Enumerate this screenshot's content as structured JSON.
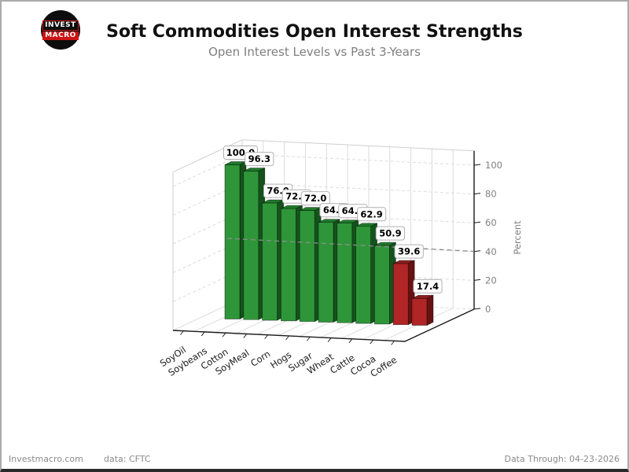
{
  "header": {
    "logo": {
      "line1": "INVEST",
      "line2": "MACRO"
    },
    "title": "Soft Commodities Open Interest Strengths",
    "subtitle": "Open Interest Levels vs Past 3-Years"
  },
  "chart_data": {
    "type": "bar",
    "projection": "3d",
    "title": "Soft Commodities Open Interest Strengths",
    "subtitle": "Open Interest Levels vs Past 3-Years",
    "categories": [
      "SoyOil",
      "Soybeans",
      "Cotton",
      "SoyMeal",
      "Corn",
      "Hogs",
      "Sugar",
      "Wheat",
      "Cattle",
      "Cocoa",
      "Coffee"
    ],
    "values": [
      100.0,
      96.3,
      76.0,
      72.8,
      72.0,
      64.7,
      64.6,
      62.9,
      50.9,
      39.6,
      17.4
    ],
    "value_labels": [
      "100.0",
      "96.3",
      "76.0",
      "72.8",
      "72.0",
      "64.7",
      "64.6",
      "62.9",
      "50.9",
      "39.6",
      "17.4"
    ],
    "bar_colors": [
      "green",
      "green",
      "green",
      "green",
      "green",
      "green",
      "green",
      "green",
      "green",
      "red",
      "red"
    ],
    "zlabel": "Percent",
    "zticks": [
      "0",
      "20",
      "40",
      "60",
      "80",
      "100"
    ],
    "zlim": [
      0,
      110
    ],
    "reference_line": 45,
    "grid": true,
    "legend": false,
    "palette": {
      "green_front": "#2E9638",
      "green_top": "#1F7A2A",
      "green_side": "#14531C",
      "red_front": "#B02525",
      "red_top": "#8F1D1D",
      "red_side": "#691111",
      "grid_light": "#DCDCDC",
      "wall_edge": "#CFCFCF",
      "reference_dash": "#8C8C8C",
      "axis": "#1A1A1A",
      "tick_text": "#808080",
      "label_box_border": "#B0B0B0"
    }
  },
  "footer": {
    "site": "Investmacro.com",
    "source": "data: CFTC",
    "data_through": "Data Through: 04-23-2026"
  }
}
